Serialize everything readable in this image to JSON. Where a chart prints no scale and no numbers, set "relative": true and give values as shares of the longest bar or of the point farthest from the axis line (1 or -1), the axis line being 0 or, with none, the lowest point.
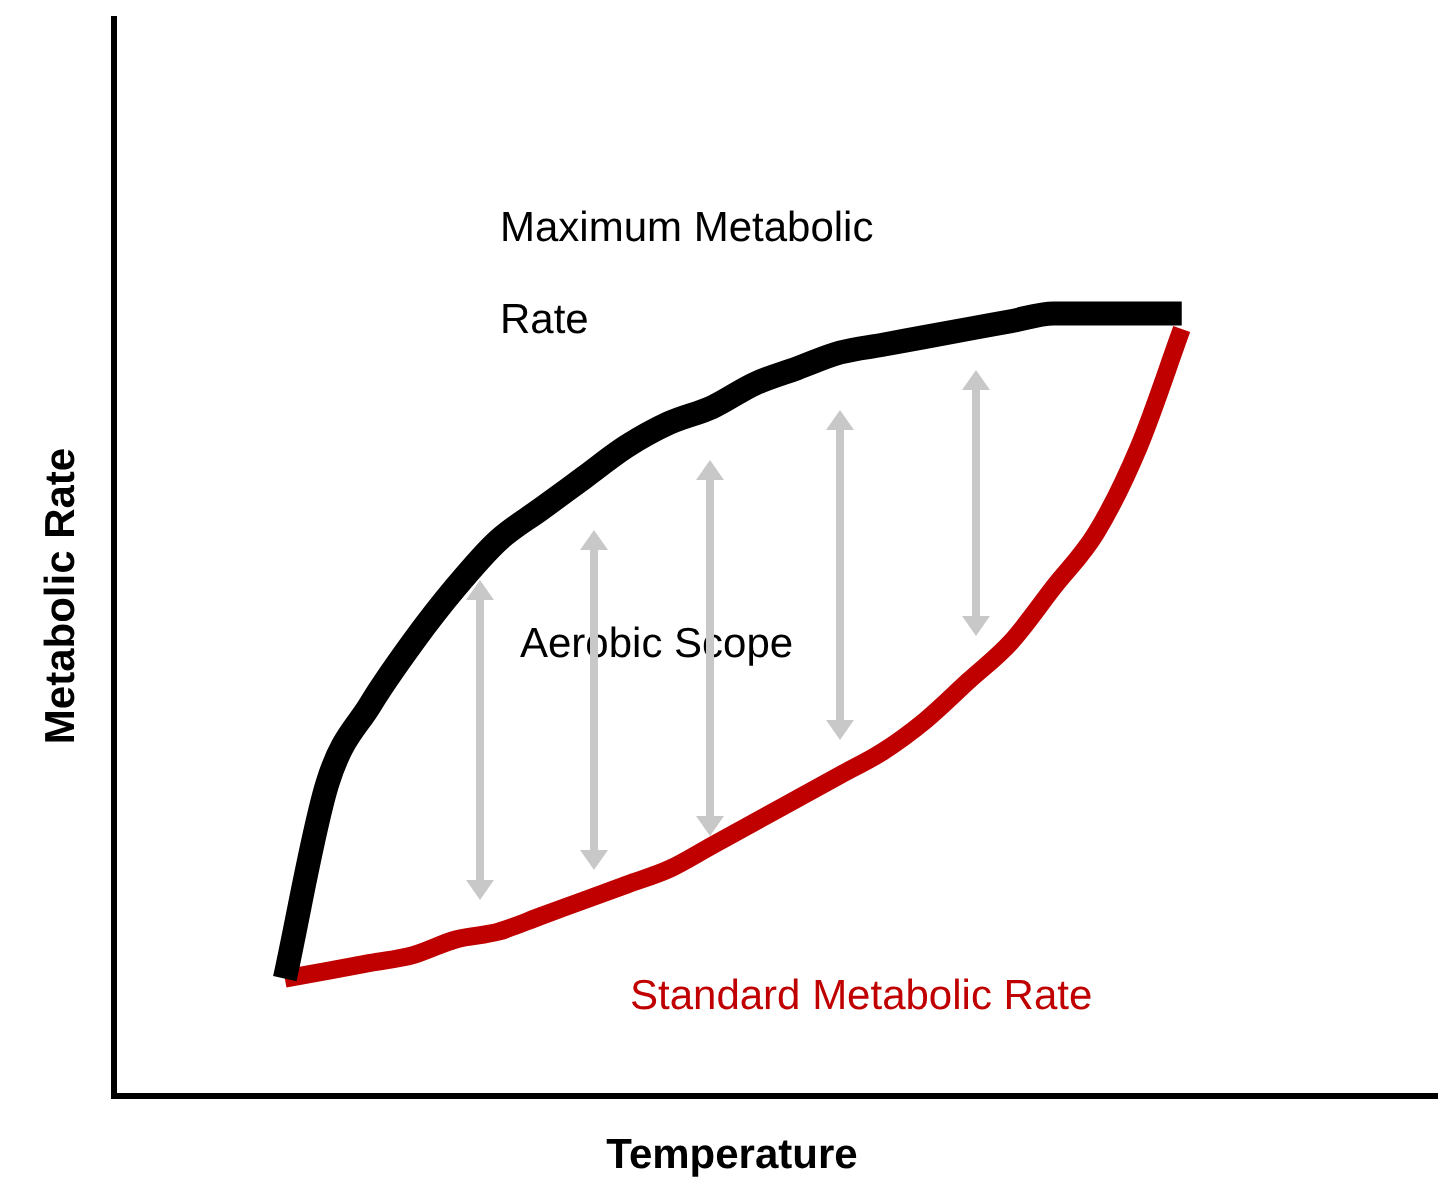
{
  "chart_data": {
    "type": "line",
    "relative": true,
    "xlabel": "Temperature",
    "ylabel": "Metabolic Rate",
    "legend": false,
    "categories": [
      null,
      null,
      null,
      null,
      null,
      null,
      null,
      null,
      null,
      null,
      null,
      null,
      null,
      null,
      null,
      null,
      null,
      null,
      null,
      null,
      null,
      null,
      null,
      null,
      null,
      null,
      null,
      null,
      null,
      null,
      null,
      null
    ],
    "series": [
      {
        "name": "Maximum Metabolic Rate",
        "color": "#000000",
        "values": [
          null,
          null,
          null,
          null,
          0.15,
          0.4,
          0.5,
          0.58,
          0.65,
          0.71,
          0.75,
          0.79,
          0.83,
          0.86,
          0.88,
          0.91,
          0.93,
          0.95,
          0.96,
          0.97,
          0.98,
          0.99,
          1.0,
          1.0,
          1.0,
          1.0,
          null,
          null,
          null,
          null,
          null,
          null
        ]
      },
      {
        "name": "Standard Metabolic Rate",
        "color": "#c00000",
        "values": [
          null,
          null,
          null,
          null,
          0.15,
          0.16,
          0.17,
          0.18,
          0.2,
          0.21,
          0.23,
          0.25,
          0.27,
          0.29,
          0.32,
          0.35,
          0.38,
          0.41,
          0.44,
          0.48,
          0.53,
          0.58,
          0.65,
          0.72,
          0.83,
          0.98,
          null,
          null,
          null,
          null,
          null,
          null
        ]
      }
    ],
    "annotations": [
      "Aerobic Scope"
    ]
  }
}
